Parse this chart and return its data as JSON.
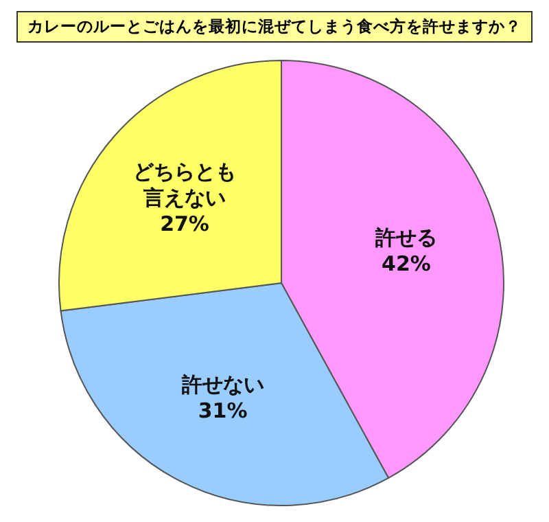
{
  "chart_data": {
    "type": "pie",
    "title": "カレーのルーとごはんを最初に混ぜてしまう食べ方を許せますか？",
    "categories": [
      "許せる",
      "許せない",
      "どちらとも言えない"
    ],
    "values": [
      42,
      31,
      27
    ],
    "colors": [
      "#ff99ff",
      "#99ccff",
      "#ffff66"
    ],
    "value_labels": [
      "42%",
      "31%",
      "27%"
    ]
  }
}
